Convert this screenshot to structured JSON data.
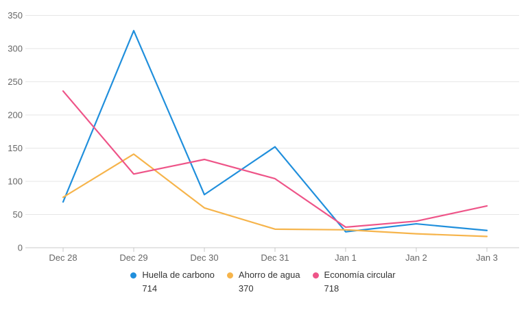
{
  "chart_data": {
    "type": "line",
    "categories": [
      "Dec 28",
      "Dec 29",
      "Dec 30",
      "Dec 31",
      "Jan 1",
      "Jan 2",
      "Jan 3"
    ],
    "series": [
      {
        "name": "Huella de carbono",
        "color": "#208fdc",
        "values": [
          69,
          327,
          80,
          152,
          24,
          36,
          26
        ],
        "total": "714"
      },
      {
        "name": "Ahorro de agua",
        "color": "#f6b44b",
        "values": [
          76,
          141,
          60,
          28,
          27,
          21,
          17
        ],
        "total": "370"
      },
      {
        "name": "Economía circular",
        "color": "#ee5488",
        "values": [
          236,
          111,
          133,
          104,
          31,
          40,
          63
        ],
        "total": "718"
      }
    ],
    "title": "",
    "xlabel": "",
    "ylabel": "",
    "ylim": [
      0,
      350
    ],
    "ytick_step": 50,
    "yticks": [
      "0",
      "50",
      "100",
      "150",
      "200",
      "250",
      "300",
      "350"
    ],
    "grid": true,
    "legend_position": "bottom"
  },
  "colors": {
    "background": "#ffffff",
    "grid": "#e6e6e6",
    "axis": "#c9c9c9",
    "axis_label": "#666666",
    "legend_text": "#333333"
  }
}
